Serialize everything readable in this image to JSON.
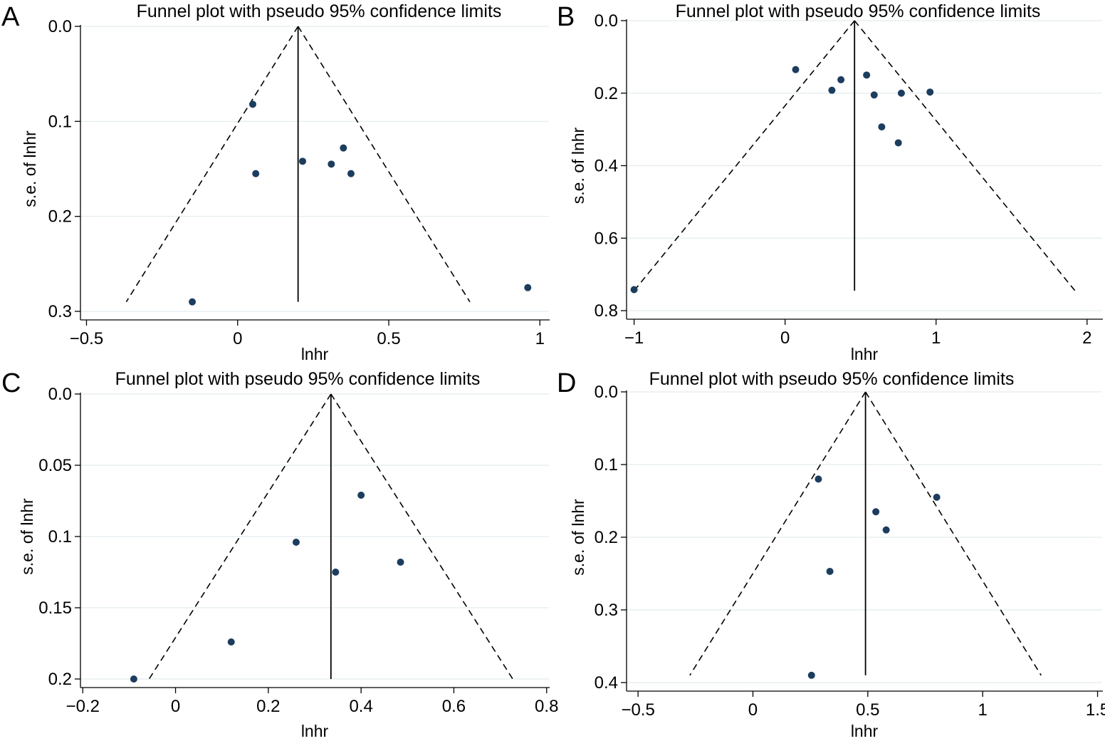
{
  "chart_data": [
    {
      "panel": "A",
      "type": "scatter",
      "title": "Funnel plot with pseudo 95% confidence limits",
      "xlabel": "lnhr",
      "ylabel": "s.e. of lnhr",
      "xlim": [
        -0.52,
        1.03
      ],
      "ylim": [
        0,
        0.3
      ],
      "y_reversed": true,
      "grid": true,
      "x_ticks": [
        -0.5,
        0,
        0.5,
        1
      ],
      "x_tick_labels": [
        "−0.5",
        "0",
        "0.5",
        "1"
      ],
      "y_ticks": [
        0,
        0.1,
        0.2,
        0.3
      ],
      "y_tick_labels": [
        "0.0",
        "0.1",
        "0.2",
        "0.3"
      ],
      "pooled_estimate": 0.2,
      "funnel_max_se": 0.29,
      "points": [
        {
          "x": 0.05,
          "y": 0.082
        },
        {
          "x": 0.06,
          "y": 0.155
        },
        {
          "x": 0.215,
          "y": 0.142
        },
        {
          "x": 0.31,
          "y": 0.145
        },
        {
          "x": 0.35,
          "y": 0.128
        },
        {
          "x": 0.375,
          "y": 0.155
        },
        {
          "x": -0.15,
          "y": 0.29
        },
        {
          "x": 0.96,
          "y": 0.275
        }
      ]
    },
    {
      "panel": "B",
      "type": "scatter",
      "title": "Funnel plot with pseudo 95% confidence limits",
      "xlabel": "lnhr",
      "ylabel": "s.e. of lnhr",
      "xlim": [
        -1.05,
        2.1
      ],
      "ylim": [
        0,
        0.8
      ],
      "y_reversed": true,
      "grid": true,
      "x_ticks": [
        -1,
        0,
        1,
        2
      ],
      "x_tick_labels": [
        "−1",
        "0",
        "1",
        "2"
      ],
      "y_ticks": [
        0,
        0.2,
        0.4,
        0.6,
        0.8
      ],
      "y_tick_labels": [
        "0.0",
        "0.2",
        "0.4",
        "0.6",
        "0.8"
      ],
      "pooled_estimate": 0.46,
      "funnel_max_se": 0.745,
      "points": [
        {
          "x": 0.07,
          "y": 0.135
        },
        {
          "x": 0.31,
          "y": 0.192
        },
        {
          "x": 0.37,
          "y": 0.163
        },
        {
          "x": 0.54,
          "y": 0.15
        },
        {
          "x": 0.59,
          "y": 0.205
        },
        {
          "x": 0.64,
          "y": 0.293
        },
        {
          "x": 0.75,
          "y": 0.337
        },
        {
          "x": 0.77,
          "y": 0.2
        },
        {
          "x": 0.96,
          "y": 0.197
        },
        {
          "x": -1.0,
          "y": 0.742
        }
      ]
    },
    {
      "panel": "C",
      "type": "scatter",
      "title": "Funnel plot with pseudo 95% confidence limits",
      "xlabel": "lnhr",
      "ylabel": "s.e. of lnhr",
      "xlim": [
        -0.205,
        0.805
      ],
      "ylim": [
        0,
        0.2
      ],
      "y_reversed": true,
      "grid": true,
      "x_ticks": [
        -0.2,
        0,
        0.2,
        0.4,
        0.6,
        0.8
      ],
      "x_tick_labels": [
        "−0.2",
        "0",
        "0.2",
        "0.4",
        "0.6",
        "0.8"
      ],
      "y_ticks": [
        0,
        0.05,
        0.1,
        0.15,
        0.2
      ],
      "y_tick_labels": [
        "0.0",
        "0.05",
        "0.1",
        "0.15",
        "0.2"
      ],
      "pooled_estimate": 0.335,
      "funnel_max_se": 0.2,
      "points": [
        {
          "x": 0.4,
          "y": 0.071
        },
        {
          "x": 0.26,
          "y": 0.104
        },
        {
          "x": 0.345,
          "y": 0.125
        },
        {
          "x": 0.485,
          "y": 0.118
        },
        {
          "x": 0.12,
          "y": 0.174
        },
        {
          "x": -0.09,
          "y": 0.2
        }
      ]
    },
    {
      "panel": "D",
      "type": "scatter",
      "title": "Funnel plot with pseudo 95% confidence limits",
      "xlabel": "lnhr",
      "ylabel": "s.e. of lnhr",
      "xlim": [
        -0.55,
        1.52
      ],
      "ylim": [
        0,
        0.4
      ],
      "y_reversed": true,
      "grid": true,
      "x_ticks": [
        -0.5,
        0,
        0.5,
        1,
        1.5
      ],
      "x_tick_labels": [
        "−0.5",
        "0",
        "0.5",
        "1",
        "1.5"
      ],
      "y_ticks": [
        0,
        0.1,
        0.2,
        0.3,
        0.4
      ],
      "y_tick_labels": [
        "0.0",
        "0.1",
        "0.2",
        "0.3",
        "0.4"
      ],
      "pooled_estimate": 0.49,
      "funnel_max_se": 0.39,
      "points": [
        {
          "x": 0.285,
          "y": 0.12
        },
        {
          "x": 0.8,
          "y": 0.145
        },
        {
          "x": 0.535,
          "y": 0.165
        },
        {
          "x": 0.58,
          "y": 0.19
        },
        {
          "x": 0.335,
          "y": 0.247
        },
        {
          "x": 0.255,
          "y": 0.39
        }
      ]
    }
  ]
}
